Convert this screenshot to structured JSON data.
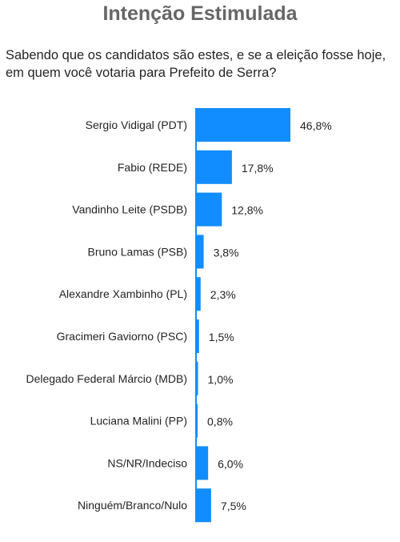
{
  "header": {
    "title": "Intenção Estimulada",
    "question": "Sabendo que os candidatos são estes, e se a eleição fosse hoje, em quem você votaria para Prefeito de Serra?"
  },
  "colors": {
    "bar": "#118DFF",
    "axis": "#118DFF",
    "title": "#666666"
  },
  "chart_data": {
    "type": "bar",
    "orientation": "horizontal",
    "categories": [
      "Sergio Vidigal (PDT)",
      "Fabio (REDE)",
      "Vandinho Leite (PSDB)",
      "Bruno Lamas (PSB)",
      "Alexandre Xambinho (PL)",
      "Gracimeri Gaviorno (PSC)",
      "Delegado Federal Márcio (MDB)",
      "Luciana Malini (PP)",
      "NS/NR/Indeciso",
      "Ninguém/Branco/Nulo"
    ],
    "values": [
      46.8,
      17.8,
      12.8,
      3.8,
      2.3,
      1.5,
      1.0,
      0.8,
      6.0,
      7.5
    ],
    "value_labels": [
      "46,8%",
      "17,8%",
      "12,8%",
      "3,8%",
      "2,3%",
      "1,5%",
      "1,0%",
      "0,8%",
      "6,0%",
      "7,5%"
    ],
    "title": "Intenção Estimulada",
    "xlabel": "",
    "ylabel": "",
    "xlim": [
      0,
      46.8
    ],
    "grid": false
  }
}
